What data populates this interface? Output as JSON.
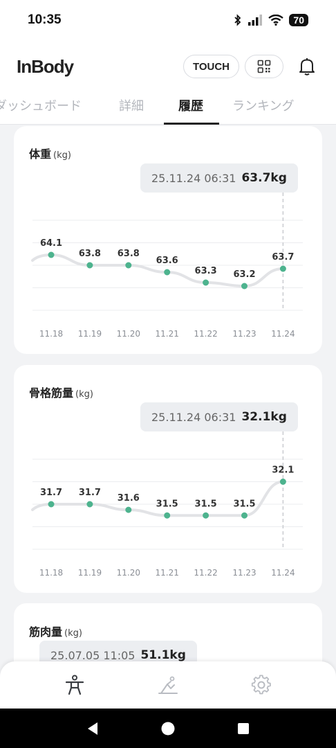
{
  "status_bar": {
    "time": "10:35",
    "battery": "70"
  },
  "header": {
    "logo": "InBody",
    "touch_label": "TOUCH"
  },
  "tabs": [
    {
      "label": "ダッシュボード",
      "active": false
    },
    {
      "label": "詳細",
      "active": false
    },
    {
      "label": "履歴",
      "active": true
    },
    {
      "label": "ランキング",
      "active": false
    }
  ],
  "cards": [
    {
      "title": "体重",
      "unit": "(kg)",
      "tooltip": {
        "datetime": "25.11.24 06:31",
        "value": "63.7kg"
      },
      "chart_data": {
        "type": "line",
        "categories": [
          "11.18",
          "11.19",
          "11.20",
          "11.21",
          "11.22",
          "11.23",
          "11.24"
        ],
        "series": [
          {
            "values": [
              64.1,
              63.8,
              63.8,
              63.6,
              63.3,
              63.2,
              63.7
            ]
          }
        ],
        "ylim": [
          62.5,
          65.1
        ],
        "grid": true,
        "highlight_index": 6,
        "colors": {
          "line": "#e2e3e6",
          "point": "#4db38e"
        }
      }
    },
    {
      "title": "骨格筋量",
      "unit": "(kg)",
      "tooltip": {
        "datetime": "25.11.24 06:31",
        "value": "32.1kg"
      },
      "chart_data": {
        "type": "line",
        "categories": [
          "11.18",
          "11.19",
          "11.20",
          "11.21",
          "11.22",
          "11.23",
          "11.24"
        ],
        "series": [
          {
            "values": [
              31.7,
              31.7,
              31.6,
              31.5,
              31.5,
              31.5,
              32.1
            ]
          }
        ],
        "ylim": [
          30.9,
          32.5
        ],
        "grid": true,
        "highlight_index": 6,
        "colors": {
          "line": "#e2e3e6",
          "point": "#4db38e"
        }
      }
    },
    {
      "title": "筋肉量",
      "unit": "(kg)",
      "tooltip": {
        "datetime": "25.07.05 11:05",
        "value": "51.1kg"
      }
    }
  ],
  "bottom_nav": [
    {
      "icon": "body-icon",
      "active": true
    },
    {
      "icon": "exercise-icon",
      "active": false
    },
    {
      "icon": "gear-icon",
      "active": false
    }
  ],
  "colors": {
    "accent": "#4db38e",
    "background": "#f2f3f5",
    "nav_active": "#3a3d42",
    "nav_inactive": "#b9bcc2"
  }
}
